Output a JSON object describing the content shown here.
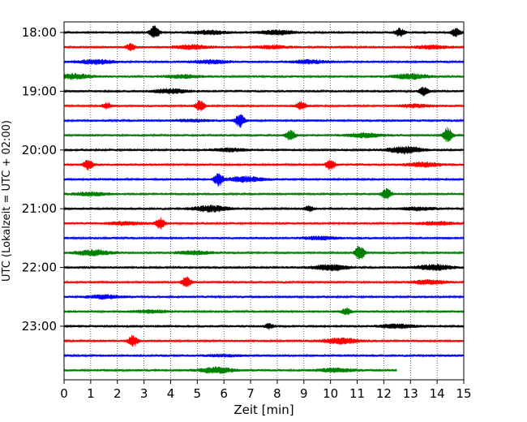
{
  "chart_data": {
    "type": "line",
    "subtype": "helicorder",
    "xlabel": "Zeit  [min]",
    "ylabel": "UTC (Lokalzeit = UTC + 02:00)",
    "xlim": [
      0,
      15
    ],
    "x_ticks": [
      "0",
      "1",
      "2",
      "3",
      "4",
      "5",
      "6",
      "7",
      "8",
      "9",
      "10",
      "11",
      "12",
      "13",
      "14",
      "15"
    ],
    "y_tick_labels": [
      "18:00",
      "19:00",
      "20:00",
      "21:00",
      "22:00",
      "23:00"
    ],
    "lines_per_hour": 4,
    "trace_count": 24,
    "trace_colors": [
      "#000000",
      "#ff0000",
      "#0000ff",
      "#008000"
    ],
    "grid": "vertical dotted lines at each minute",
    "last_trace_end_min": 12.5,
    "events": [
      {
        "trace": 0,
        "min": 3.4,
        "type": "spike",
        "amp": 0.8
      },
      {
        "trace": 0,
        "min": 5.5,
        "type": "burst",
        "amp": 0.4
      },
      {
        "trace": 0,
        "min": 8.0,
        "type": "burst",
        "amp": 0.45
      },
      {
        "trace": 0,
        "min": 12.6,
        "type": "spike",
        "amp": 0.5
      },
      {
        "trace": 0,
        "min": 14.7,
        "type": "spike",
        "amp": 0.5
      },
      {
        "trace": 1,
        "min": 2.5,
        "type": "spike",
        "amp": 0.4
      },
      {
        "trace": 1,
        "min": 4.8,
        "type": "burst",
        "amp": 0.4
      },
      {
        "trace": 1,
        "min": 7.8,
        "type": "burst",
        "amp": 0.3
      },
      {
        "trace": 1,
        "min": 13.8,
        "type": "burst",
        "amp": 0.35
      },
      {
        "trace": 2,
        "min": 1.2,
        "type": "burst",
        "amp": 0.45
      },
      {
        "trace": 2,
        "min": 5.5,
        "type": "burst",
        "amp": 0.35
      },
      {
        "trace": 2,
        "min": 9.2,
        "type": "burst",
        "amp": 0.35
      },
      {
        "trace": 3,
        "min": 0.4,
        "type": "burst",
        "amp": 0.5
      },
      {
        "trace": 3,
        "min": 4.5,
        "type": "burst",
        "amp": 0.35
      },
      {
        "trace": 3,
        "min": 13.0,
        "type": "burst",
        "amp": 0.5
      },
      {
        "trace": 4,
        "min": 4.0,
        "type": "burst",
        "amp": 0.45
      },
      {
        "trace": 4,
        "min": 13.5,
        "type": "spike",
        "amp": 0.5
      },
      {
        "trace": 5,
        "min": 1.6,
        "type": "spike",
        "amp": 0.35
      },
      {
        "trace": 5,
        "min": 5.1,
        "type": "spike",
        "amp": 0.6
      },
      {
        "trace": 5,
        "min": 8.9,
        "type": "spike",
        "amp": 0.5
      },
      {
        "trace": 5,
        "min": 13.2,
        "type": "burst",
        "amp": 0.3
      },
      {
        "trace": 6,
        "min": 6.6,
        "type": "spike",
        "amp": 0.8
      },
      {
        "trace": 6,
        "min": 4.8,
        "type": "burst",
        "amp": 0.2
      },
      {
        "trace": 7,
        "min": 8.5,
        "type": "spike",
        "amp": 0.6
      },
      {
        "trace": 7,
        "min": 11.3,
        "type": "burst",
        "amp": 0.45
      },
      {
        "trace": 7,
        "min": 14.4,
        "type": "spike",
        "amp": 0.9
      },
      {
        "trace": 8,
        "min": 6.2,
        "type": "burst",
        "amp": 0.3
      },
      {
        "trace": 8,
        "min": 12.8,
        "type": "burst",
        "amp": 0.7
      },
      {
        "trace": 9,
        "min": 0.9,
        "type": "spike",
        "amp": 0.6
      },
      {
        "trace": 9,
        "min": 10.0,
        "type": "spike",
        "amp": 0.6
      },
      {
        "trace": 9,
        "min": 13.5,
        "type": "burst",
        "amp": 0.45
      },
      {
        "trace": 10,
        "min": 5.8,
        "type": "spike",
        "amp": 0.8
      },
      {
        "trace": 10,
        "min": 6.8,
        "type": "burst",
        "amp": 0.55
      },
      {
        "trace": 11,
        "min": 1.0,
        "type": "burst",
        "amp": 0.35
      },
      {
        "trace": 11,
        "min": 12.1,
        "type": "spike",
        "amp": 0.7
      },
      {
        "trace": 12,
        "min": 5.5,
        "type": "burst",
        "amp": 0.6
      },
      {
        "trace": 12,
        "min": 9.2,
        "type": "spike",
        "amp": 0.3
      },
      {
        "trace": 12,
        "min": 13.3,
        "type": "burst",
        "amp": 0.3
      },
      {
        "trace": 13,
        "min": 3.6,
        "type": "spike",
        "amp": 0.7
      },
      {
        "trace": 13,
        "min": 2.3,
        "type": "burst",
        "amp": 0.3
      },
      {
        "trace": 13,
        "min": 14.0,
        "type": "burst",
        "amp": 0.35
      },
      {
        "trace": 14,
        "min": 9.6,
        "type": "burst",
        "amp": 0.3
      },
      {
        "trace": 15,
        "min": 1.1,
        "type": "burst",
        "amp": 0.55
      },
      {
        "trace": 15,
        "min": 4.9,
        "type": "burst",
        "amp": 0.35
      },
      {
        "trace": 15,
        "min": 11.1,
        "type": "spike",
        "amp": 0.9
      },
      {
        "trace": 16,
        "min": 10.0,
        "type": "burst",
        "amp": 0.6
      },
      {
        "trace": 16,
        "min": 13.9,
        "type": "burst",
        "amp": 0.55
      },
      {
        "trace": 17,
        "min": 4.6,
        "type": "spike",
        "amp": 0.7
      },
      {
        "trace": 17,
        "min": 13.7,
        "type": "burst",
        "amp": 0.4
      },
      {
        "trace": 18,
        "min": 1.5,
        "type": "burst",
        "amp": 0.35
      },
      {
        "trace": 19,
        "min": 3.3,
        "type": "burst",
        "amp": 0.3
      },
      {
        "trace": 19,
        "min": 10.6,
        "type": "spike",
        "amp": 0.4
      },
      {
        "trace": 20,
        "min": 7.7,
        "type": "spike",
        "amp": 0.3
      },
      {
        "trace": 20,
        "min": 12.5,
        "type": "burst",
        "amp": 0.4
      },
      {
        "trace": 21,
        "min": 2.6,
        "type": "spike",
        "amp": 0.7
      },
      {
        "trace": 21,
        "min": 10.4,
        "type": "burst",
        "amp": 0.6
      },
      {
        "trace": 22,
        "min": 6.0,
        "type": "burst",
        "amp": 0.2
      },
      {
        "trace": 23,
        "min": 5.7,
        "type": "burst",
        "amp": 0.6
      },
      {
        "trace": 23,
        "min": 10.2,
        "type": "burst",
        "amp": 0.4
      }
    ]
  }
}
